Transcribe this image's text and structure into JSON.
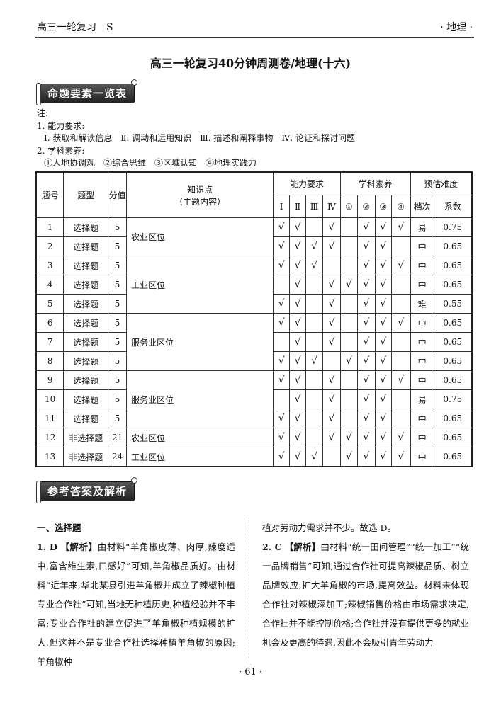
{
  "header": {
    "left": "高三一轮复习　S",
    "right": "· 地理 ·"
  },
  "title": "高三一轮复习40分钟周测卷/地理(十六)",
  "banner1": "命题要素一览表",
  "banner2": "参考答案及解析",
  "notes": {
    "label": "注:",
    "ability_title": "1. 能力要求:",
    "abilities": [
      "Ⅰ. 获取和解读信息",
      "Ⅱ. 调动和运用知识",
      "Ⅲ. 描述和阐释事物",
      "Ⅳ. 论证和探讨问题"
    ],
    "literacy_title": "2. 学科素养:",
    "literacies": [
      "①人地协调观",
      "②综合思维",
      "③区域认知",
      "④地理实践力"
    ]
  },
  "table": {
    "headers": {
      "num": "题号",
      "type": "题型",
      "score": "分值",
      "topic": "知识点",
      "topic_sub": "（主题内容）",
      "ability": "能力要求",
      "literacy": "学科素养",
      "difficulty": "预估难度",
      "level": "档次",
      "coef": "系数"
    },
    "sub_headers": [
      "Ⅰ",
      "Ⅱ",
      "Ⅲ",
      "Ⅳ",
      "①",
      "②",
      "③",
      "④"
    ],
    "check": "√",
    "rows": [
      {
        "num": "1",
        "type": "选择题",
        "score": "5",
        "topic": "农业区位",
        "span": 2,
        "checks": [
          1,
          1,
          0,
          1,
          0,
          1,
          1,
          1
        ],
        "level": "易",
        "coef": "0.75"
      },
      {
        "num": "2",
        "type": "选择题",
        "score": "5",
        "checks": [
          1,
          1,
          1,
          1,
          0,
          1,
          1,
          0
        ],
        "level": "中",
        "coef": "0.65"
      },
      {
        "num": "3",
        "type": "选择题",
        "score": "5",
        "topic": "工业区位",
        "span": 3,
        "checks": [
          1,
          1,
          1,
          0,
          0,
          1,
          1,
          1
        ],
        "level": "中",
        "coef": "0.65"
      },
      {
        "num": "4",
        "type": "选择题",
        "score": "5",
        "checks": [
          0,
          1,
          0,
          1,
          1,
          1,
          1,
          0
        ],
        "level": "中",
        "coef": "0.65"
      },
      {
        "num": "5",
        "type": "选择题",
        "score": "5",
        "checks": [
          1,
          1,
          0,
          1,
          0,
          1,
          1,
          0
        ],
        "level": "难",
        "coef": "0.55"
      },
      {
        "num": "6",
        "type": "选择题",
        "score": "5",
        "topic": "服务业区位",
        "span": 3,
        "checks": [
          1,
          1,
          0,
          1,
          0,
          1,
          1,
          1
        ],
        "level": "中",
        "coef": "0.65"
      },
      {
        "num": "7",
        "type": "选择题",
        "score": "5",
        "checks": [
          0,
          1,
          0,
          1,
          0,
          1,
          1,
          0
        ],
        "level": "中",
        "coef": "0.65"
      },
      {
        "num": "8",
        "type": "选择题",
        "score": "5",
        "checks": [
          1,
          1,
          1,
          0,
          1,
          1,
          1,
          0
        ],
        "level": "中",
        "coef": "0.65"
      },
      {
        "num": "9",
        "type": "选择题",
        "score": "5",
        "topic": "服务业区位",
        "span": 3,
        "checks": [
          1,
          1,
          0,
          1,
          0,
          1,
          1,
          1
        ],
        "level": "中",
        "coef": "0.65"
      },
      {
        "num": "10",
        "type": "选择题",
        "score": "5",
        "checks": [
          0,
          1,
          0,
          1,
          0,
          1,
          1,
          0
        ],
        "level": "易",
        "coef": "0.75"
      },
      {
        "num": "11",
        "type": "选择题",
        "score": "5",
        "checks": [
          1,
          1,
          0,
          1,
          0,
          1,
          1,
          0
        ],
        "level": "中",
        "coef": "0.65"
      },
      {
        "num": "12",
        "type": "非选择题",
        "score": "21",
        "topic": "农业区位",
        "span": 1,
        "checks": [
          1,
          1,
          0,
          1,
          1,
          1,
          1,
          1
        ],
        "level": "中",
        "coef": "0.65"
      },
      {
        "num": "13",
        "type": "非选择题",
        "score": "24",
        "topic": "工业区位",
        "span": 1,
        "checks": [
          1,
          1,
          1,
          0,
          1,
          1,
          1,
          1
        ],
        "level": "中",
        "coef": "0.65"
      }
    ]
  },
  "answers": {
    "section": "一、选择题",
    "a1_num": "1. D",
    "a1_tag": "【解析】",
    "a1_text": "由材料“羊角椒皮薄、肉厚,辣度适中,富含维生素,口感好”可知,羊角椒品质好。由材料“近年来,华北某县引进羊角椒并成立了辣椒种植专业合作社”可知,当地无种植历史,种植经验并不丰富;专业合作社的建立促进了羊角椒种植规模的扩大,但这并不是专业合作社选择种植羊角椒的原因;羊角椒种",
    "a1_cont": "植对劳动力需求并不少。故选 D。",
    "a2_num": "2. C",
    "a2_tag": "【解析】",
    "a2_text": "由材料“统一田间管理”“统一加工”“统一品牌销售”可知,通过合作社可提高辣椒品质、树立品牌效应,扩大羊角椒的市场,提高效益。材料未体现合作社对辣椒深加工;辣椒销售价格由市场需求决定,合作社并不能控制价格;合作社并没有提供更多的就业机会及更高的待遇,因此不会吸引青年劳动力"
  },
  "page_number": "· 61 ·"
}
